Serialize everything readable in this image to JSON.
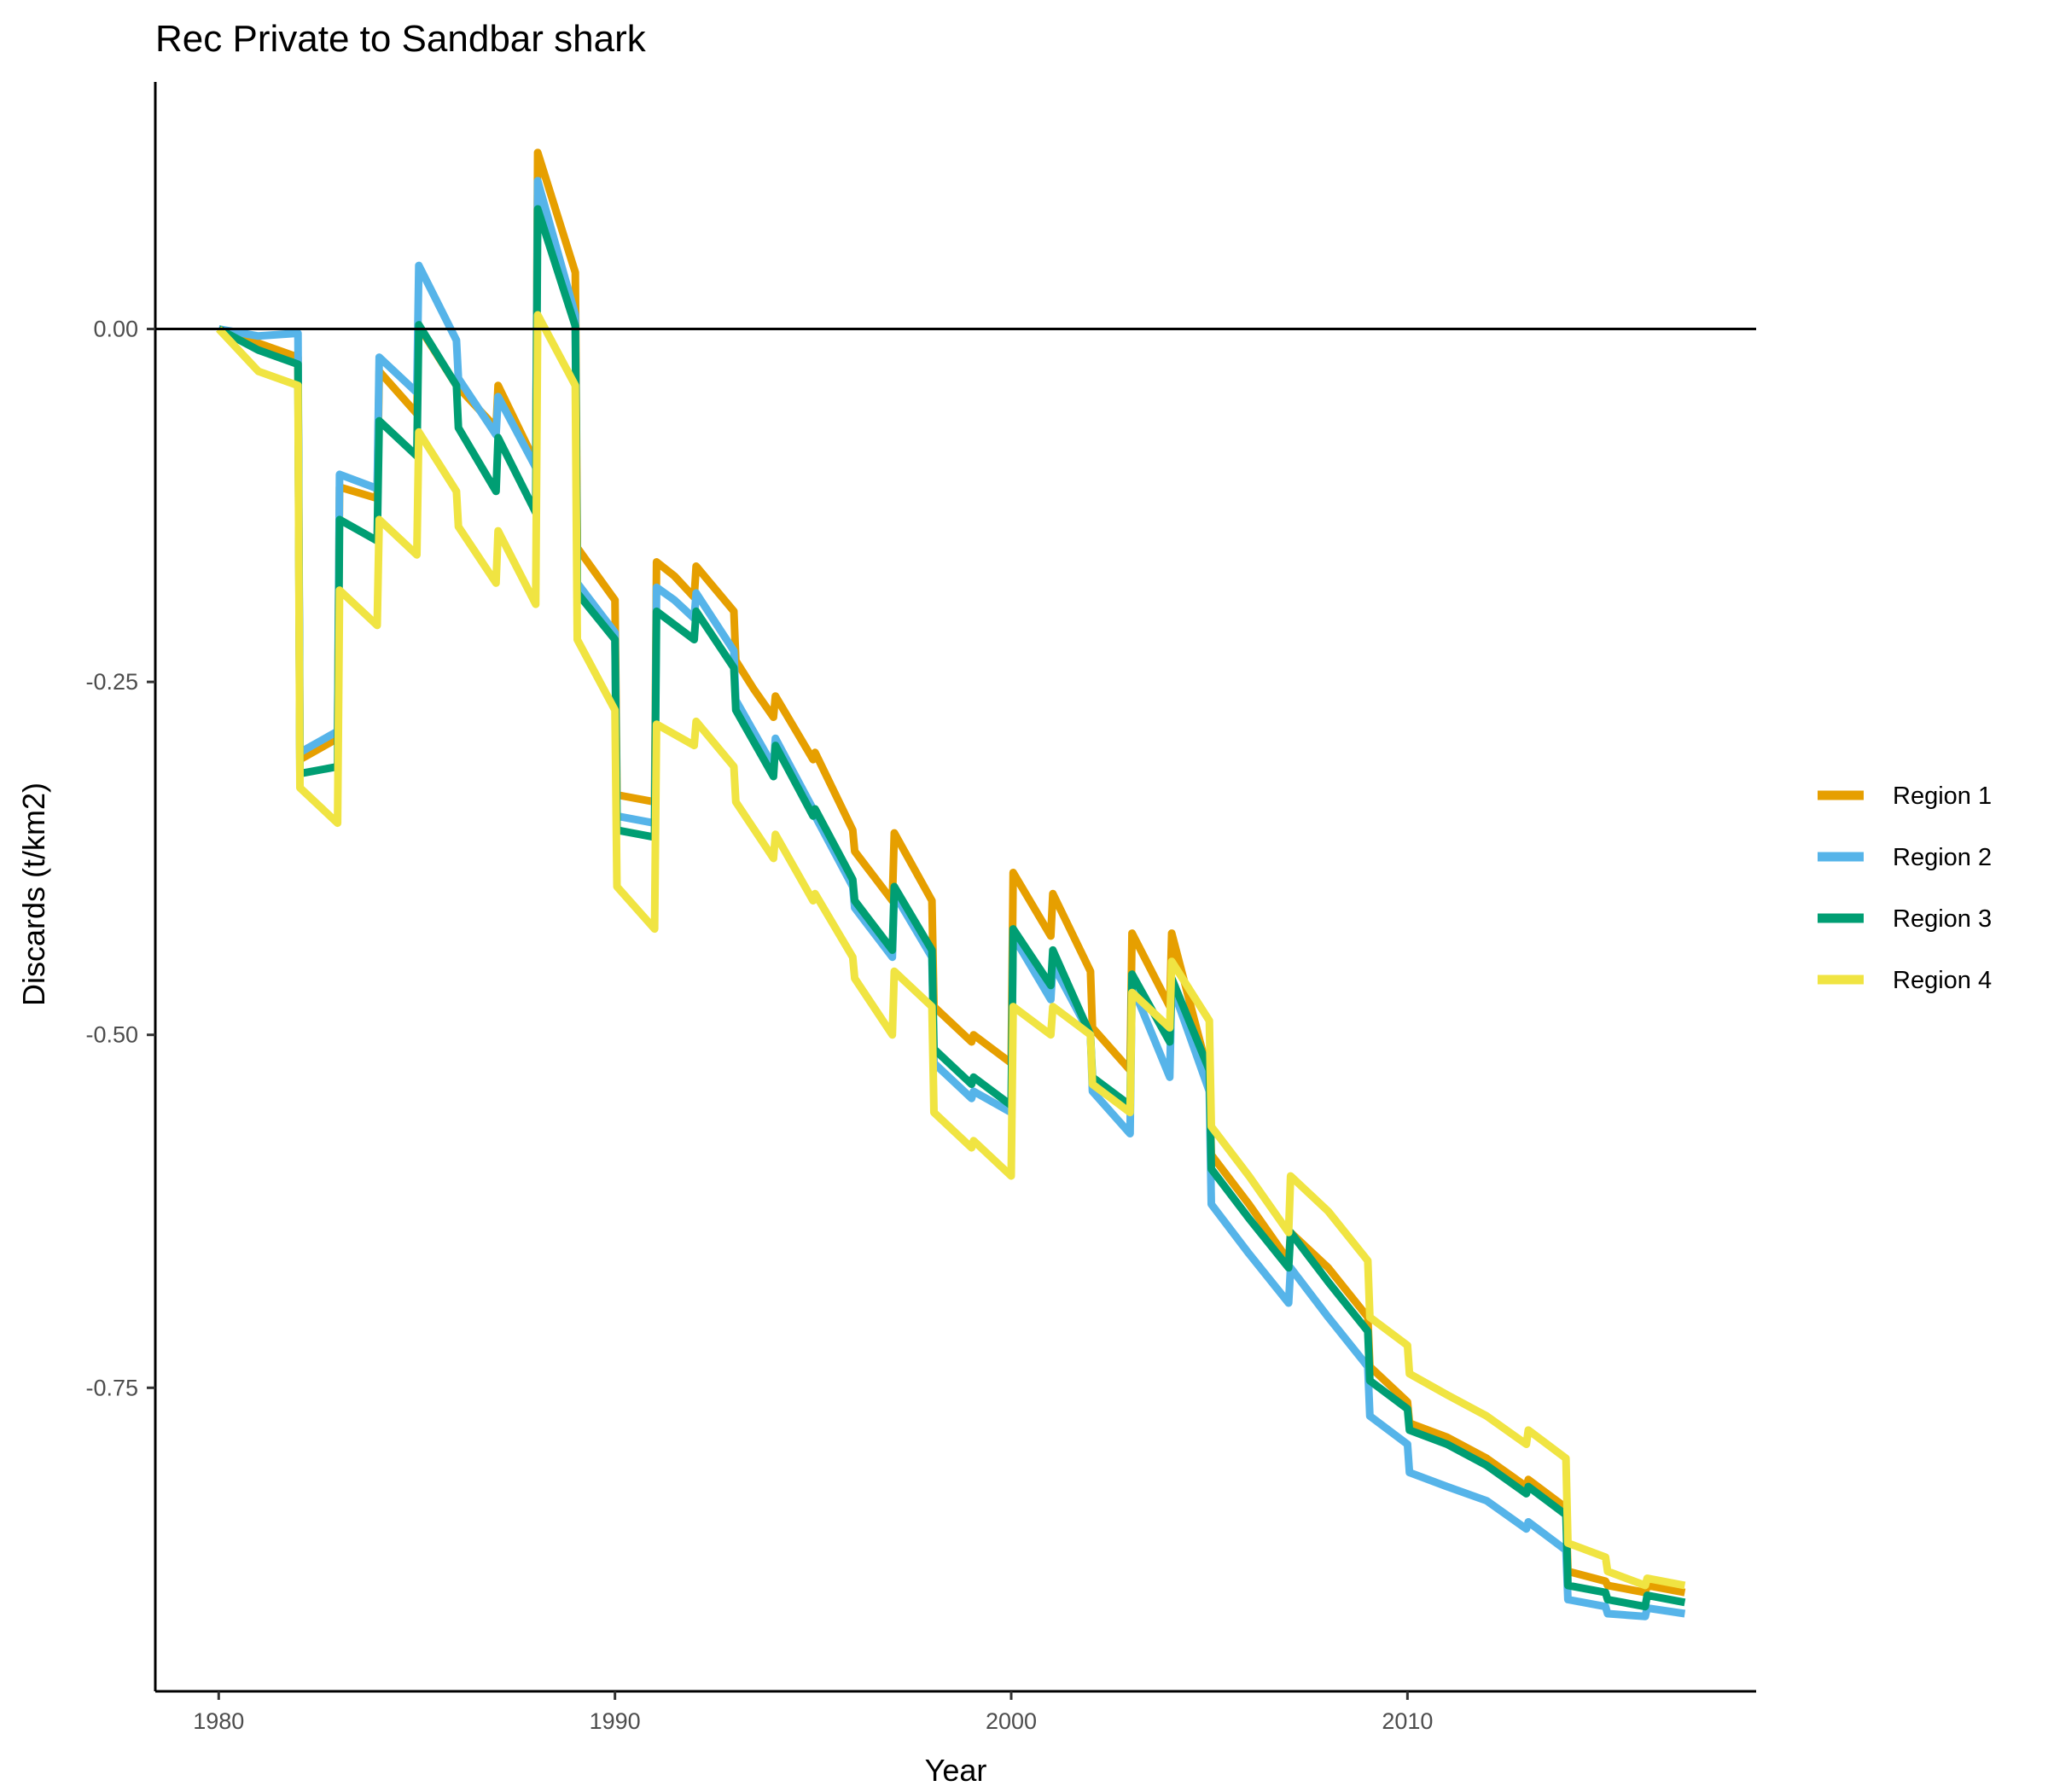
{
  "chart_data": {
    "type": "line",
    "title": "Rec Private to Sandbar shark",
    "xlabel": "Year",
    "ylabel": "Discards (t/km2)",
    "xlim": [
      1978.4,
      2018.8
    ],
    "ylim": [
      -0.965,
      0.175
    ],
    "x_ticks": [
      1980,
      1990,
      2000,
      2010
    ],
    "x_tick_labels": [
      "1980",
      "1990",
      "2000",
      "2010"
    ],
    "y_ticks": [
      0,
      -0.25,
      -0.5,
      -0.75
    ],
    "y_tick_labels": [
      "0.00",
      "-0.25",
      "-0.50",
      "-0.75"
    ],
    "reference_line_y": 0,
    "grid": false,
    "legend_position": "right",
    "series": [
      {
        "name": "Region 1",
        "color": "#E69F00",
        "points": [
          [
            1980,
            0
          ],
          [
            1981,
            -0.01
          ],
          [
            1982,
            -0.02
          ],
          [
            1982.05,
            -0.305
          ],
          [
            1983,
            -0.29
          ],
          [
            1983.05,
            -0.112
          ],
          [
            1984,
            -0.12
          ],
          [
            1984.05,
            -0.03
          ],
          [
            1985,
            -0.06
          ],
          [
            1985.05,
            0.002
          ],
          [
            1986,
            -0.04
          ],
          [
            1987,
            -0.07
          ],
          [
            1987.05,
            -0.04
          ],
          [
            1988,
            -0.095
          ],
          [
            1988.05,
            0.125
          ],
          [
            1989,
            0.04
          ],
          [
            1989.05,
            -0.155
          ],
          [
            1990,
            -0.192
          ],
          [
            1990.05,
            -0.33
          ],
          [
            1991,
            -0.335
          ],
          [
            1991.05,
            -0.165
          ],
          [
            1991.5,
            -0.175
          ],
          [
            1992,
            -0.19
          ],
          [
            1992.05,
            -0.168
          ],
          [
            1993,
            -0.2
          ],
          [
            1993.05,
            -0.235
          ],
          [
            1993.5,
            -0.255
          ],
          [
            1994,
            -0.275
          ],
          [
            1994.05,
            -0.26
          ],
          [
            1995,
            -0.305
          ],
          [
            1995.05,
            -0.3
          ],
          [
            1996,
            -0.355
          ],
          [
            1996.05,
            -0.37
          ],
          [
            1997,
            -0.405
          ],
          [
            1997.05,
            -0.357
          ],
          [
            1998,
            -0.405
          ],
          [
            1998.05,
            -0.48
          ],
          [
            1999,
            -0.505
          ],
          [
            1999.05,
            -0.5
          ],
          [
            2000,
            -0.52
          ],
          [
            2000.05,
            -0.385
          ],
          [
            2001,
            -0.43
          ],
          [
            2001.05,
            -0.4
          ],
          [
            2002,
            -0.455
          ],
          [
            2002.05,
            -0.495
          ],
          [
            2003,
            -0.525
          ],
          [
            2003.05,
            -0.428
          ],
          [
            2004,
            -0.48
          ],
          [
            2004.05,
            -0.428
          ],
          [
            2005,
            -0.53
          ],
          [
            2005.05,
            -0.585
          ],
          [
            2006,
            -0.62
          ],
          [
            2007,
            -0.66
          ],
          [
            2007.05,
            -0.64
          ],
          [
            2008,
            -0.665
          ],
          [
            2009,
            -0.7
          ],
          [
            2009.05,
            -0.735
          ],
          [
            2010,
            -0.76
          ],
          [
            2010.05,
            -0.775
          ],
          [
            2011,
            -0.785
          ],
          [
            2012,
            -0.8
          ],
          [
            2013,
            -0.82
          ],
          [
            2013.05,
            -0.815
          ],
          [
            2014,
            -0.835
          ],
          [
            2014.05,
            -0.88
          ],
          [
            2015,
            -0.887
          ],
          [
            2015.05,
            -0.89
          ],
          [
            2016,
            -0.895
          ],
          [
            2016.05,
            -0.89
          ],
          [
            2017,
            -0.895
          ]
        ]
      },
      {
        "name": "Region 2",
        "color": "#56B4E9",
        "points": [
          [
            1980,
            0
          ],
          [
            1981,
            -0.005
          ],
          [
            1982,
            -0.003
          ],
          [
            1982.05,
            -0.3
          ],
          [
            1983,
            -0.285
          ],
          [
            1983.05,
            -0.103
          ],
          [
            1984,
            -0.113
          ],
          [
            1984.05,
            -0.02
          ],
          [
            1985,
            -0.045
          ],
          [
            1985.05,
            0.045
          ],
          [
            1986,
            -0.008
          ],
          [
            1986.05,
            -0.035
          ],
          [
            1987,
            -0.075
          ],
          [
            1987.05,
            -0.048
          ],
          [
            1988,
            -0.098
          ],
          [
            1988.05,
            0.105
          ],
          [
            1989,
            0.01
          ],
          [
            1989.05,
            -0.18
          ],
          [
            1990,
            -0.215
          ],
          [
            1990.05,
            -0.345
          ],
          [
            1991,
            -0.35
          ],
          [
            1991.05,
            -0.183
          ],
          [
            1991.5,
            -0.192
          ],
          [
            1992,
            -0.205
          ],
          [
            1992.05,
            -0.187
          ],
          [
            1993,
            -0.228
          ],
          [
            1993.05,
            -0.263
          ],
          [
            1994,
            -0.31
          ],
          [
            1994.05,
            -0.29
          ],
          [
            1995,
            -0.34
          ],
          [
            1995.05,
            -0.345
          ],
          [
            1996,
            -0.395
          ],
          [
            1996.05,
            -0.41
          ],
          [
            1997,
            -0.445
          ],
          [
            1997.05,
            -0.4
          ],
          [
            1998,
            -0.445
          ],
          [
            1998.05,
            -0.52
          ],
          [
            1999,
            -0.545
          ],
          [
            1999.05,
            -0.54
          ],
          [
            2000,
            -0.555
          ],
          [
            2000.05,
            -0.43
          ],
          [
            2001,
            -0.475
          ],
          [
            2001.05,
            -0.45
          ],
          [
            2002,
            -0.5
          ],
          [
            2002.05,
            -0.54
          ],
          [
            2003,
            -0.57
          ],
          [
            2003.05,
            -0.465
          ],
          [
            2004,
            -0.53
          ],
          [
            2004.05,
            -0.465
          ],
          [
            2005,
            -0.54
          ],
          [
            2005.05,
            -0.62
          ],
          [
            2006,
            -0.655
          ],
          [
            2007,
            -0.69
          ],
          [
            2007.05,
            -0.665
          ],
          [
            2008,
            -0.7
          ],
          [
            2009,
            -0.735
          ],
          [
            2009.05,
            -0.77
          ],
          [
            2010,
            -0.79
          ],
          [
            2010.05,
            -0.81
          ],
          [
            2011,
            -0.82
          ],
          [
            2012,
            -0.83
          ],
          [
            2013,
            -0.85
          ],
          [
            2013.05,
            -0.845
          ],
          [
            2014,
            -0.865
          ],
          [
            2014.05,
            -0.9
          ],
          [
            2015,
            -0.905
          ],
          [
            2015.05,
            -0.91
          ],
          [
            2016,
            -0.912
          ],
          [
            2016.05,
            -0.906
          ],
          [
            2017,
            -0.91
          ]
        ]
      },
      {
        "name": "Region 3",
        "color": "#009E73",
        "points": [
          [
            1980,
            0
          ],
          [
            1981,
            -0.015
          ],
          [
            1982,
            -0.025
          ],
          [
            1982.05,
            -0.315
          ],
          [
            1983,
            -0.31
          ],
          [
            1983.05,
            -0.135
          ],
          [
            1984,
            -0.15
          ],
          [
            1984.05,
            -0.065
          ],
          [
            1985,
            -0.09
          ],
          [
            1985.05,
            0.003
          ],
          [
            1986,
            -0.04
          ],
          [
            1986.05,
            -0.07
          ],
          [
            1987,
            -0.115
          ],
          [
            1987.05,
            -0.077
          ],
          [
            1988,
            -0.13
          ],
          [
            1988.05,
            0.085
          ],
          [
            1989,
            0.002
          ],
          [
            1989.05,
            -0.187
          ],
          [
            1990,
            -0.22
          ],
          [
            1990.05,
            -0.355
          ],
          [
            1991,
            -0.36
          ],
          [
            1991.05,
            -0.2
          ],
          [
            1992,
            -0.22
          ],
          [
            1992.05,
            -0.2
          ],
          [
            1993,
            -0.24
          ],
          [
            1993.05,
            -0.27
          ],
          [
            1994,
            -0.317
          ],
          [
            1994.05,
            -0.295
          ],
          [
            1995,
            -0.345
          ],
          [
            1995.05,
            -0.34
          ],
          [
            1996,
            -0.39
          ],
          [
            1996.05,
            -0.405
          ],
          [
            1997,
            -0.44
          ],
          [
            1997.05,
            -0.395
          ],
          [
            1998,
            -0.44
          ],
          [
            1998.05,
            -0.51
          ],
          [
            1999,
            -0.535
          ],
          [
            1999.05,
            -0.53
          ],
          [
            2000,
            -0.55
          ],
          [
            2000.05,
            -0.425
          ],
          [
            2001,
            -0.465
          ],
          [
            2001.05,
            -0.44
          ],
          [
            2002,
            -0.5
          ],
          [
            2002.05,
            -0.53
          ],
          [
            2003,
            -0.55
          ],
          [
            2003.05,
            -0.457
          ],
          [
            2004,
            -0.505
          ],
          [
            2004.05,
            -0.46
          ],
          [
            2005,
            -0.525
          ],
          [
            2005.05,
            -0.595
          ],
          [
            2006,
            -0.63
          ],
          [
            2007,
            -0.665
          ],
          [
            2007.05,
            -0.64
          ],
          [
            2008,
            -0.675
          ],
          [
            2009,
            -0.71
          ],
          [
            2009.05,
            -0.745
          ],
          [
            2010,
            -0.765
          ],
          [
            2010.05,
            -0.78
          ],
          [
            2011,
            -0.79
          ],
          [
            2012,
            -0.805
          ],
          [
            2013,
            -0.825
          ],
          [
            2013.05,
            -0.82
          ],
          [
            2014,
            -0.84
          ],
          [
            2014.05,
            -0.89
          ],
          [
            2015,
            -0.895
          ],
          [
            2015.05,
            -0.9
          ],
          [
            2016,
            -0.905
          ],
          [
            2016.05,
            -0.897
          ],
          [
            2017,
            -0.902
          ]
        ]
      },
      {
        "name": "Region 4",
        "color": "#F0E442",
        "points": [
          [
            1980,
            0
          ],
          [
            1981,
            -0.03
          ],
          [
            1982,
            -0.04
          ],
          [
            1982.05,
            -0.325
          ],
          [
            1983,
            -0.35
          ],
          [
            1983.05,
            -0.185
          ],
          [
            1984,
            -0.21
          ],
          [
            1984.05,
            -0.135
          ],
          [
            1985,
            -0.16
          ],
          [
            1985.05,
            -0.073
          ],
          [
            1986,
            -0.115
          ],
          [
            1986.05,
            -0.14
          ],
          [
            1987,
            -0.18
          ],
          [
            1987.05,
            -0.143
          ],
          [
            1988,
            -0.195
          ],
          [
            1988.05,
            0.01
          ],
          [
            1989,
            -0.04
          ],
          [
            1989.05,
            -0.22
          ],
          [
            1990,
            -0.27
          ],
          [
            1990.05,
            -0.395
          ],
          [
            1991,
            -0.425
          ],
          [
            1991.05,
            -0.28
          ],
          [
            1992,
            -0.295
          ],
          [
            1992.05,
            -0.278
          ],
          [
            1993,
            -0.31
          ],
          [
            1993.05,
            -0.335
          ],
          [
            1994,
            -0.375
          ],
          [
            1994.05,
            -0.358
          ],
          [
            1995,
            -0.405
          ],
          [
            1995.05,
            -0.4
          ],
          [
            1996,
            -0.445
          ],
          [
            1996.05,
            -0.46
          ],
          [
            1997,
            -0.5
          ],
          [
            1997.05,
            -0.455
          ],
          [
            1998,
            -0.48
          ],
          [
            1998.05,
            -0.555
          ],
          [
            1999,
            -0.58
          ],
          [
            1999.05,
            -0.575
          ],
          [
            2000,
            -0.6
          ],
          [
            2000.05,
            -0.48
          ],
          [
            2001,
            -0.5
          ],
          [
            2001.05,
            -0.48
          ],
          [
            2002,
            -0.5
          ],
          [
            2002.05,
            -0.535
          ],
          [
            2003,
            -0.555
          ],
          [
            2003.05,
            -0.47
          ],
          [
            2004,
            -0.495
          ],
          [
            2004.05,
            -0.448
          ],
          [
            2005,
            -0.49
          ],
          [
            2005.05,
            -0.565
          ],
          [
            2006,
            -0.6
          ],
          [
            2007,
            -0.64
          ],
          [
            2007.05,
            -0.6
          ],
          [
            2008,
            -0.625
          ],
          [
            2009,
            -0.66
          ],
          [
            2009.05,
            -0.7
          ],
          [
            2010,
            -0.72
          ],
          [
            2010.05,
            -0.74
          ],
          [
            2011,
            -0.755
          ],
          [
            2012,
            -0.77
          ],
          [
            2013,
            -0.79
          ],
          [
            2013.05,
            -0.78
          ],
          [
            2014,
            -0.8
          ],
          [
            2014.05,
            -0.86
          ],
          [
            2015,
            -0.87
          ],
          [
            2015.05,
            -0.88
          ],
          [
            2016,
            -0.89
          ],
          [
            2016.05,
            -0.885
          ],
          [
            2017,
            -0.89
          ]
        ]
      }
    ]
  }
}
